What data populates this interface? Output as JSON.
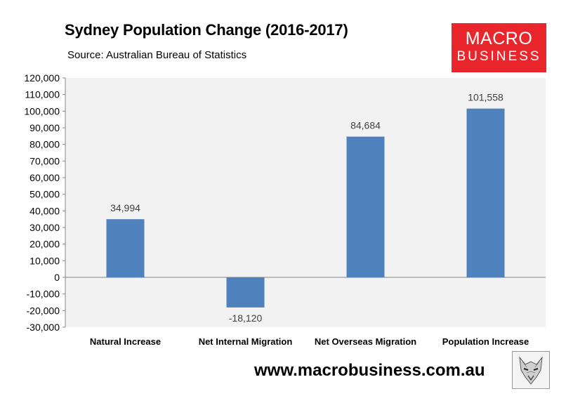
{
  "header": {
    "title": "Sydney Population Change (2016-2017)",
    "source": "Source: Australian Bureau of Statistics"
  },
  "logo": {
    "line1": "MACRO",
    "line2": "BUSINESS",
    "color": "#e8262b"
  },
  "footer": {
    "url": "www.macrobusiness.com.au",
    "mascot_icon": "wolf-icon"
  },
  "chart_data": {
    "type": "bar",
    "categories": [
      "Natural Increase",
      "Net Internal Migration",
      "Net Overseas Migration",
      "Population Increase"
    ],
    "values": [
      34994,
      -18120,
      84684,
      101558
    ],
    "value_labels": [
      "34,994",
      "-18,120",
      "84,684",
      "101,558"
    ],
    "ylim": [
      -30000,
      120000
    ],
    "yticks": [
      -30000,
      -20000,
      -10000,
      0,
      10000,
      20000,
      30000,
      40000,
      50000,
      60000,
      70000,
      80000,
      90000,
      100000,
      110000,
      120000
    ],
    "ytick_labels": [
      "-30,000",
      "-20,000",
      "-10,000",
      "0",
      "10,000",
      "20,000",
      "30,000",
      "40,000",
      "50,000",
      "60,000",
      "70,000",
      "80,000",
      "90,000",
      "100,000",
      "110,000",
      "120,000"
    ],
    "bar_color": "#4f81bd",
    "plot_background": "#f2f2f2",
    "grid": false
  }
}
